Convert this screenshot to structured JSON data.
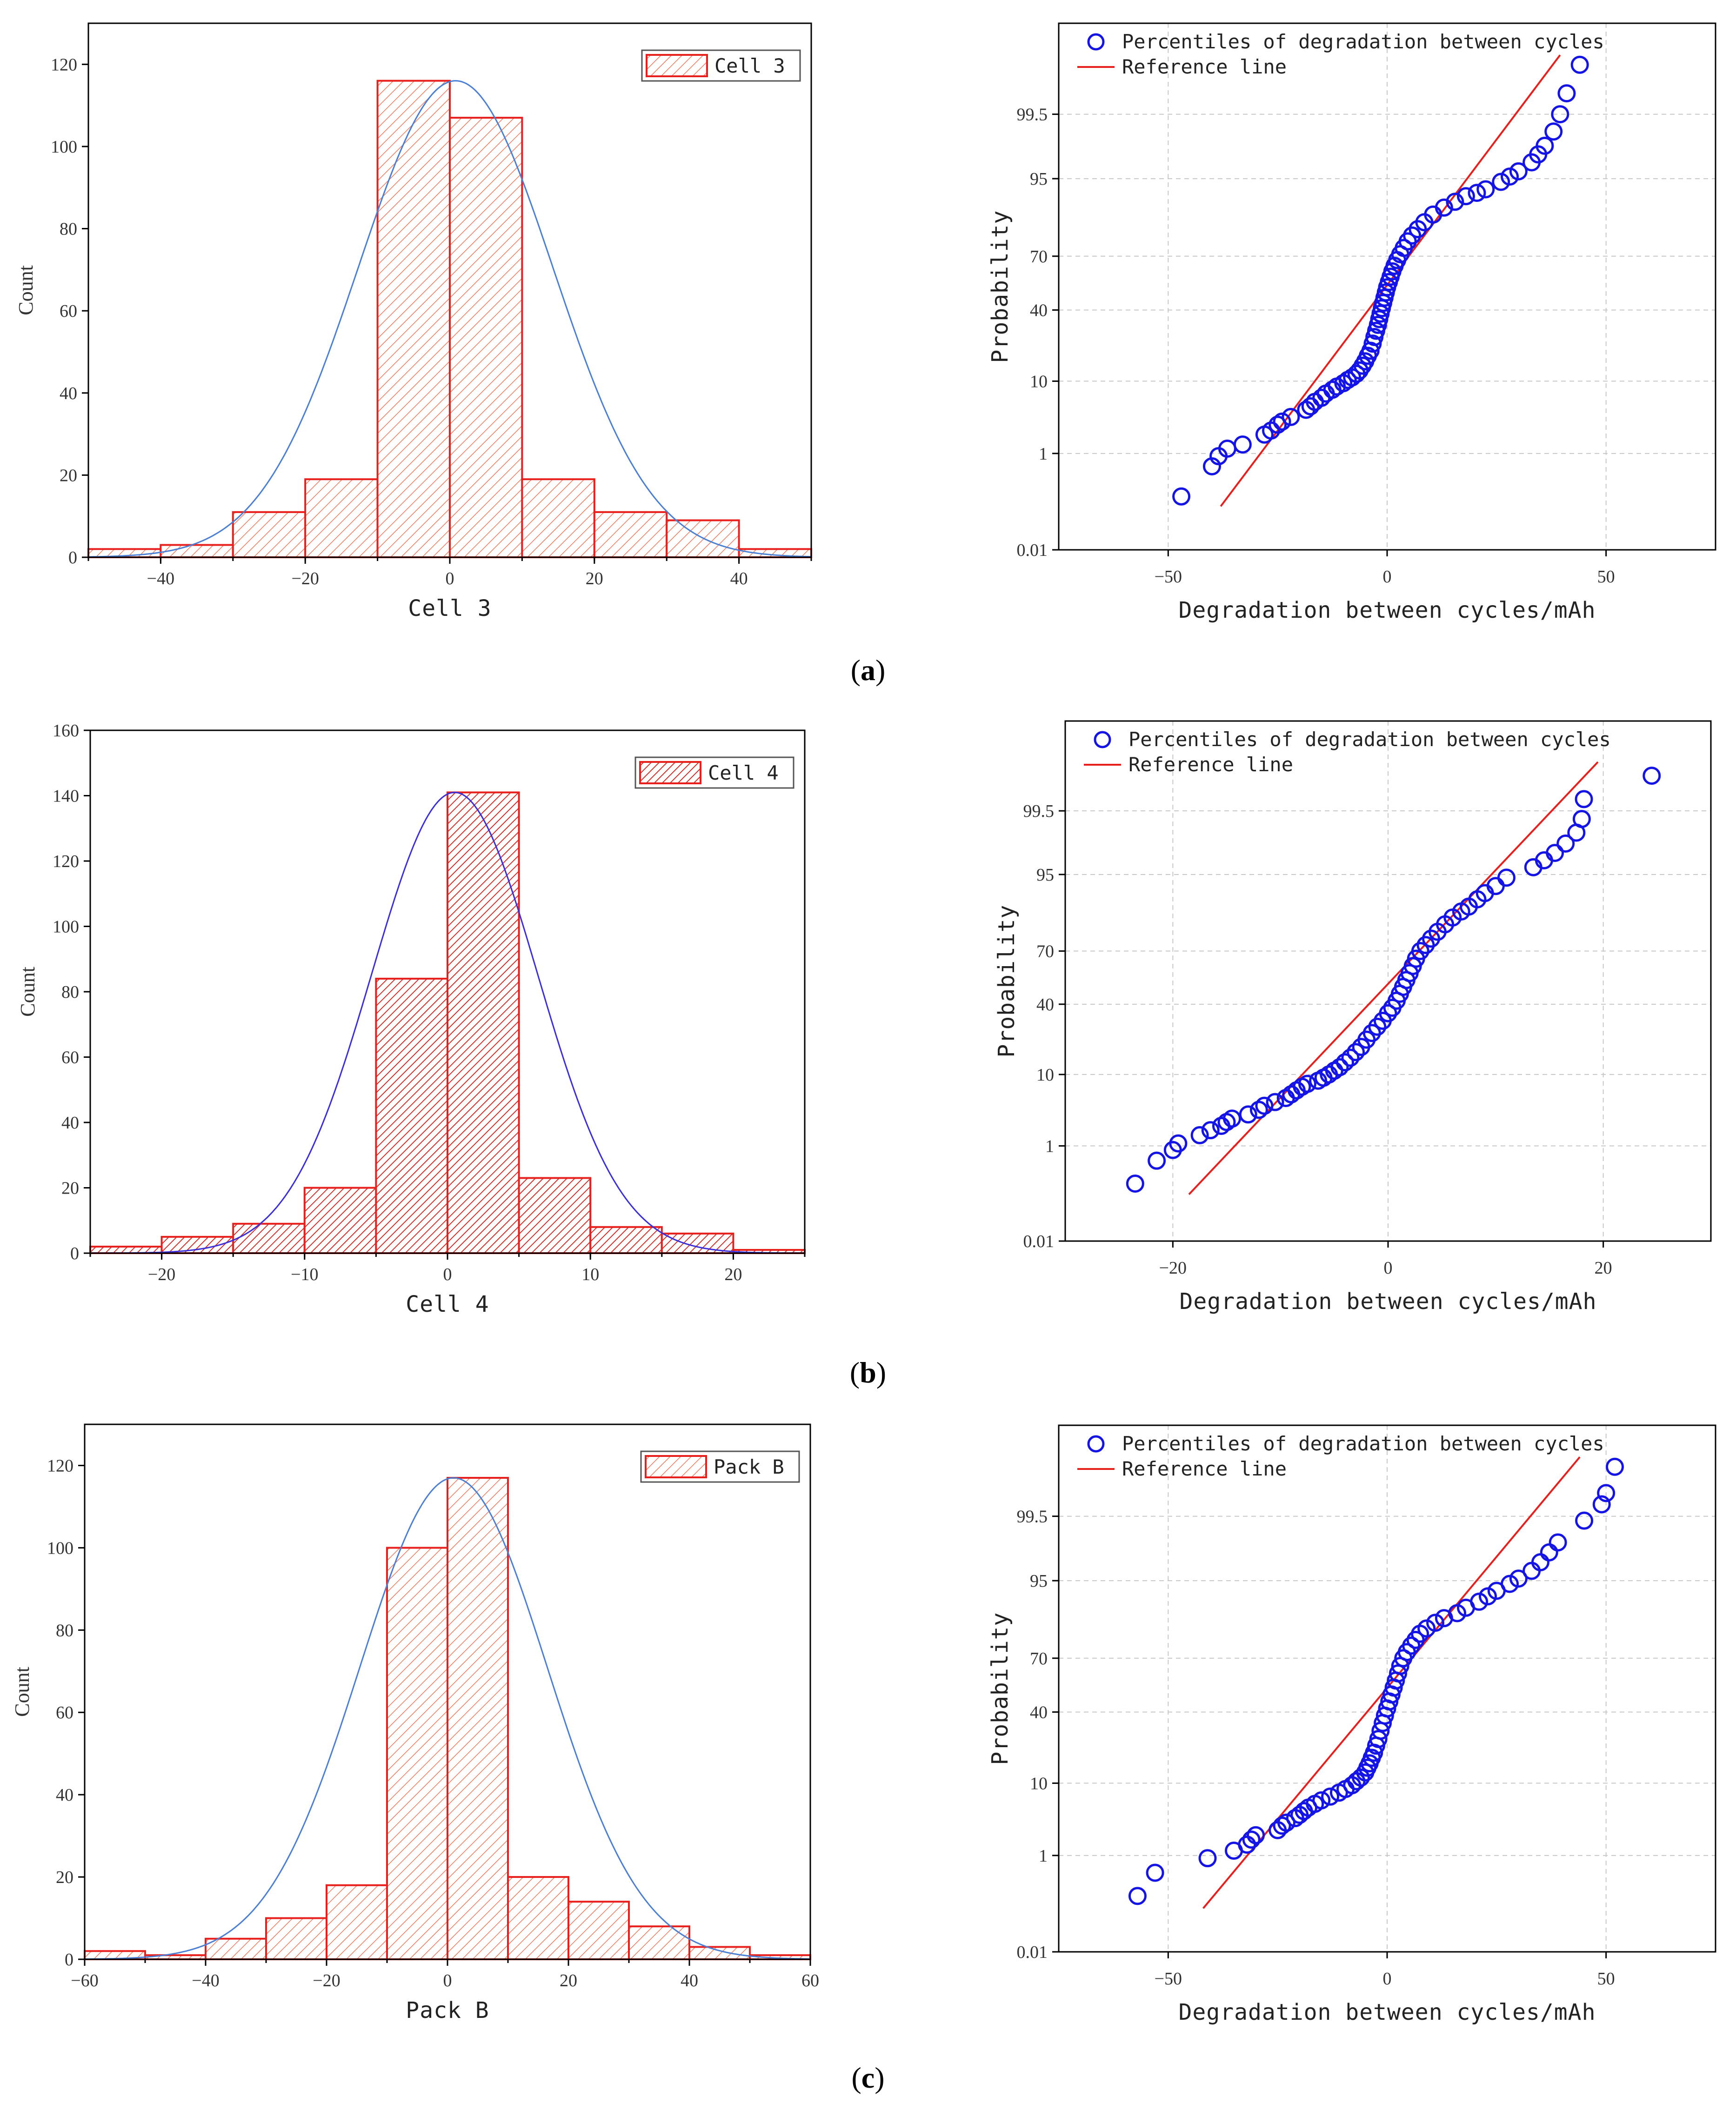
{
  "figure": {
    "panels": [
      {
        "caption_letter": "a"
      },
      {
        "caption_letter": "b"
      },
      {
        "caption_letter": "c"
      }
    ]
  },
  "colors": {
    "bar_edge": "#e8201d",
    "curve_a": "#4a7fd4",
    "curve_b": "#3a2fd8",
    "curve_c": "#4a7fd4",
    "points": "#1414e6",
    "reference_line": "#e8201d"
  },
  "chart_data": [
    {
      "id": "hist-a",
      "type": "bar",
      "subtype": "histogram",
      "xlabel": "Cell 3",
      "ylabel": "Count",
      "legend": "Cell 3",
      "legend_position": "top-right",
      "hatch": "light",
      "xlim": [
        -50,
        50
      ],
      "ylim": [
        0,
        130
      ],
      "xticks": [
        -40,
        -20,
        0,
        20,
        40
      ],
      "yticks": [
        0,
        20,
        40,
        60,
        80,
        100,
        120
      ],
      "bin_edges": [
        -50,
        -40,
        -30,
        -20,
        -10,
        0,
        10,
        20,
        30,
        40,
        50
      ],
      "values": [
        2,
        3,
        11,
        19,
        116,
        107,
        19,
        11,
        9,
        2
      ],
      "normal_fit": {
        "mean": 0.8,
        "sd": 13.5,
        "peak": 116
      }
    },
    {
      "id": "pp-a",
      "type": "scatter",
      "subtype": "probability_plot",
      "xlabel": "Degradation between cycles/mAh",
      "ylabel": "Probability",
      "legend": [
        "Percentiles of degradation between cycles",
        "Reference line"
      ],
      "legend_position": "top-left",
      "xlim": [
        -75,
        75
      ],
      "xticks": [
        -50,
        0,
        50
      ],
      "yticks": [
        "0.01",
        "1",
        "10",
        "40",
        "70",
        "95",
        "99.5"
      ],
      "points": [
        [
          -47,
          0.16
        ],
        [
          -40,
          0.6
        ],
        [
          -38.5,
          0.9
        ],
        [
          -36.5,
          1.2
        ],
        [
          -33,
          1.4
        ],
        [
          -28,
          2.0
        ],
        [
          -26.5,
          2.3
        ],
        [
          -25,
          2.8
        ],
        [
          -24,
          3.1
        ],
        [
          -22,
          3.6
        ],
        [
          -18.5,
          4.5
        ],
        [
          -17.5,
          5
        ],
        [
          -16.5,
          5.7
        ],
        [
          -15,
          6.4
        ],
        [
          -14,
          7.2
        ],
        [
          -12.5,
          8.0
        ],
        [
          -11.5,
          8.7
        ],
        [
          -10,
          9.5
        ],
        [
          -9,
          10.3
        ],
        [
          -8,
          11.0
        ],
        [
          -7,
          12.0
        ],
        [
          -6.3,
          13.0
        ],
        [
          -5.6,
          14.5
        ],
        [
          -5,
          16
        ],
        [
          -4.4,
          18
        ],
        [
          -3.8,
          20
        ],
        [
          -3.3,
          23
        ],
        [
          -2.9,
          26
        ],
        [
          -2.5,
          29
        ],
        [
          -2.1,
          32
        ],
        [
          -1.8,
          35
        ],
        [
          -1.5,
          38
        ],
        [
          -1.2,
          41
        ],
        [
          -0.9,
          44
        ],
        [
          -0.6,
          47
        ],
        [
          -0.3,
          50
        ],
        [
          0,
          53
        ],
        [
          0.4,
          56
        ],
        [
          0.8,
          59
        ],
        [
          1.2,
          62
        ],
        [
          1.7,
          65
        ],
        [
          2.3,
          68
        ],
        [
          3,
          71
        ],
        [
          3.8,
          74
        ],
        [
          4.7,
          77
        ],
        [
          5.7,
          79.5
        ],
        [
          7,
          82
        ],
        [
          8.5,
          84.5
        ],
        [
          10.5,
          87
        ],
        [
          13,
          89
        ],
        [
          15.5,
          90.5
        ],
        [
          18,
          91.8
        ],
        [
          20.5,
          92.5
        ],
        [
          22.5,
          93.2
        ],
        [
          26,
          94.5
        ],
        [
          28,
          95.3
        ],
        [
          30,
          96
        ],
        [
          33,
          97
        ],
        [
          34.5,
          97.7
        ],
        [
          36,
          98.3
        ],
        [
          38,
          99.0
        ],
        [
          39.5,
          99.5
        ],
        [
          41,
          99.8
        ],
        [
          44,
          99.95
        ]
      ],
      "reference_line": {
        "x": [
          -38,
          39.5
        ],
        "y": [
          0.1,
          99.97
        ]
      }
    },
    {
      "id": "hist-b",
      "type": "bar",
      "subtype": "histogram",
      "xlabel": "Cell 4",
      "ylabel": "Count",
      "legend": "Cell 4",
      "legend_position": "top-right",
      "hatch": "dense",
      "xlim": [
        -25,
        25
      ],
      "ylim": [
        0,
        160
      ],
      "xticks": [
        -20,
        -10,
        0,
        10,
        20
      ],
      "yticks": [
        0,
        20,
        40,
        60,
        80,
        100,
        120,
        140,
        160
      ],
      "bin_edges": [
        -25,
        -20,
        -15,
        -10,
        -5,
        0,
        5,
        10,
        15,
        20,
        25
      ],
      "values": [
        2,
        5,
        9,
        20,
        84,
        141,
        23,
        8,
        6,
        1
      ],
      "normal_fit": {
        "mean": 0.5,
        "sd": 5.8,
        "peak": 141
      }
    },
    {
      "id": "pp-b",
      "type": "scatter",
      "subtype": "probability_plot",
      "xlabel": "Degradation between cycles/mAh",
      "ylabel": "Probability",
      "legend": [
        "Percentiles of degradation between cycles",
        "Reference line"
      ],
      "legend_position": "top-left",
      "xlim": [
        -30,
        30
      ],
      "xticks": [
        -20,
        0,
        20
      ],
      "yticks": [
        "0.01",
        "1",
        "10",
        "40",
        "70",
        "95",
        "99.5"
      ],
      "points": [
        [
          -23.5,
          0.2
        ],
        [
          -21.5,
          0.55
        ],
        [
          -20,
          0.85
        ],
        [
          -19.5,
          1.1
        ],
        [
          -17.5,
          1.5
        ],
        [
          -16.5,
          1.8
        ],
        [
          -15.5,
          2.1
        ],
        [
          -15,
          2.4
        ],
        [
          -14.5,
          2.7
        ],
        [
          -13,
          3.1
        ],
        [
          -12,
          3.6
        ],
        [
          -11.5,
          4.1
        ],
        [
          -10.5,
          4.6
        ],
        [
          -9.5,
          5.2
        ],
        [
          -9,
          5.8
        ],
        [
          -8.5,
          6.5
        ],
        [
          -8,
          7.2
        ],
        [
          -7.5,
          7.8
        ],
        [
          -6.5,
          8.5
        ],
        [
          -6,
          9.2
        ],
        [
          -5.5,
          10
        ],
        [
          -5,
          11
        ],
        [
          -4.5,
          12
        ],
        [
          -4,
          13.5
        ],
        [
          -3.5,
          15
        ],
        [
          -3,
          17
        ],
        [
          -2.5,
          19
        ],
        [
          -2,
          22
        ],
        [
          -1.5,
          25
        ],
        [
          -1,
          28
        ],
        [
          -0.5,
          31
        ],
        [
          0,
          35
        ],
        [
          0.4,
          38
        ],
        [
          0.8,
          42
        ],
        [
          1.1,
          46
        ],
        [
          1.4,
          50
        ],
        [
          1.7,
          54
        ],
        [
          2,
          58
        ],
        [
          2.3,
          62
        ],
        [
          2.6,
          66
        ],
        [
          3,
          70
        ],
        [
          3.5,
          73
        ],
        [
          4,
          76
        ],
        [
          4.6,
          79
        ],
        [
          5.3,
          82
        ],
        [
          6,
          84.5
        ],
        [
          6.8,
          86.5
        ],
        [
          7.5,
          88
        ],
        [
          8.3,
          90
        ],
        [
          9,
          91.5
        ],
        [
          10,
          93
        ],
        [
          11,
          94.5
        ],
        [
          13.5,
          96
        ],
        [
          14.5,
          96.8
        ],
        [
          15.5,
          97.5
        ],
        [
          16.5,
          98.2
        ],
        [
          17.5,
          98.8
        ],
        [
          18,
          99.3
        ],
        [
          18.2,
          99.7
        ],
        [
          24.5,
          99.9
        ]
      ],
      "reference_line": {
        "x": [
          -18.5,
          19.5
        ],
        "y": [
          0.12,
          99.95
        ]
      }
    },
    {
      "id": "hist-c",
      "type": "bar",
      "subtype": "histogram",
      "xlabel": "Pack B",
      "ylabel": "Count",
      "legend": "Pack B",
      "legend_position": "top-right",
      "hatch": "light",
      "xlim": [
        -60,
        60
      ],
      "ylim": [
        0,
        130
      ],
      "xticks": [
        -60,
        -40,
        -20,
        0,
        20,
        40,
        60
      ],
      "yticks": [
        0,
        20,
        40,
        60,
        80,
        100,
        120
      ],
      "bin_edges": [
        -60,
        -50,
        -40,
        -30,
        -20,
        -10,
        0,
        10,
        20,
        30,
        40,
        50,
        60
      ],
      "values": [
        2,
        1,
        5,
        10,
        18,
        100,
        117,
        20,
        14,
        8,
        3,
        1
      ],
      "normal_fit": {
        "mean": 1.0,
        "sd": 15.5,
        "peak": 117
      }
    },
    {
      "id": "pp-c",
      "type": "scatter",
      "subtype": "probability_plot",
      "xlabel": "Degradation between cycles/mAh",
      "ylabel": "Probability",
      "legend": [
        "Percentiles of degradation between cycles",
        "Reference line"
      ],
      "legend_position": "top-left",
      "xlim": [
        -75,
        75
      ],
      "xticks": [
        -50,
        0,
        50
      ],
      "yticks": [
        "0.01",
        "1",
        "10",
        "40",
        "70",
        "95",
        "99.5"
      ],
      "points": [
        [
          -57,
          0.18
        ],
        [
          -53,
          0.5
        ],
        [
          -41,
          0.9
        ],
        [
          -35,
          1.2
        ],
        [
          -32,
          1.5
        ],
        [
          -31,
          1.8
        ],
        [
          -30,
          2.1
        ],
        [
          -25,
          2.5
        ],
        [
          -24,
          2.9
        ],
        [
          -23,
          3.2
        ],
        [
          -21,
          3.7
        ],
        [
          -20,
          4.1
        ],
        [
          -19,
          4.6
        ],
        [
          -18,
          5.1
        ],
        [
          -16.5,
          5.7
        ],
        [
          -15,
          6.3
        ],
        [
          -13,
          7
        ],
        [
          -11,
          7.8
        ],
        [
          -9.5,
          8.6
        ],
        [
          -8,
          9.5
        ],
        [
          -7,
          10.5
        ],
        [
          -6,
          11.5
        ],
        [
          -5,
          13
        ],
        [
          -4.5,
          14.5
        ],
        [
          -4,
          16
        ],
        [
          -3.5,
          18
        ],
        [
          -3,
          20
        ],
        [
          -2.5,
          23
        ],
        [
          -2,
          26
        ],
        [
          -1.5,
          30
        ],
        [
          -1,
          34
        ],
        [
          -0.5,
          38
        ],
        [
          0,
          42
        ],
        [
          0.5,
          46
        ],
        [
          1,
          50
        ],
        [
          1.5,
          54
        ],
        [
          2,
          58
        ],
        [
          2.5,
          62
        ],
        [
          3,
          66
        ],
        [
          3.7,
          70
        ],
        [
          4.5,
          73
        ],
        [
          5.5,
          76
        ],
        [
          6.5,
          78.5
        ],
        [
          7.5,
          81
        ],
        [
          9,
          83
        ],
        [
          11,
          85
        ],
        [
          13,
          86.5
        ],
        [
          16,
          88
        ],
        [
          18,
          89.5
        ],
        [
          21,
          91
        ],
        [
          23,
          92.2
        ],
        [
          25,
          93.3
        ],
        [
          28,
          94.5
        ],
        [
          30,
          95.3
        ],
        [
          33,
          96.3
        ],
        [
          35,
          97.2
        ],
        [
          37,
          98
        ],
        [
          39,
          98.6
        ],
        [
          45,
          99.4
        ],
        [
          49,
          99.7
        ],
        [
          50,
          99.82
        ],
        [
          52,
          99.95
        ]
      ],
      "reference_line": {
        "x": [
          -42,
          44
        ],
        "y": [
          0.1,
          99.97
        ]
      }
    }
  ]
}
